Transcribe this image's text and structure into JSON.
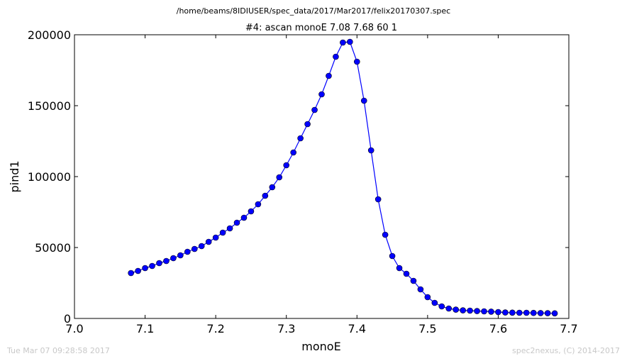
{
  "figure": {
    "suptitle": "/home/beams/8IDIUSER/spec_data/2017/Mar2017/felix20170307.spec",
    "footer_left": "Tue Mar 07 09:28:58 2017",
    "footer_right": "spec2nexus, (C) 2014-2017"
  },
  "chart_data": {
    "type": "line",
    "title": "#4: ascan  monoE 7.08 7.68  60 1",
    "xlabel": "monoE",
    "ylabel": "pind1",
    "xlim": [
      7.0,
      7.7
    ],
    "ylim": [
      0,
      200000
    ],
    "xticks": [
      "7.0",
      "7.1",
      "7.2",
      "7.3",
      "7.4",
      "7.5",
      "7.6",
      "7.7"
    ],
    "yticks": [
      "0",
      "50000",
      "100000",
      "150000",
      "200000"
    ],
    "grid": false,
    "color": "#0000ff",
    "marker": "circle",
    "series": [
      {
        "x": [
          7.08,
          7.09,
          7.1,
          7.11,
          7.12,
          7.13,
          7.14,
          7.15,
          7.16,
          7.17,
          7.18,
          7.19,
          7.2,
          7.21,
          7.22,
          7.23,
          7.24,
          7.25,
          7.26,
          7.27,
          7.28,
          7.29,
          7.3,
          7.31,
          7.32,
          7.33,
          7.34,
          7.35,
          7.36,
          7.37,
          7.38,
          7.39,
          7.4,
          7.41,
          7.42,
          7.43,
          7.44,
          7.45,
          7.46,
          7.47,
          7.48,
          7.49,
          7.5,
          7.51,
          7.52,
          7.53,
          7.54,
          7.55,
          7.56,
          7.57,
          7.58,
          7.59,
          7.6,
          7.61,
          7.62,
          7.63,
          7.64,
          7.65,
          7.66,
          7.67,
          7.68
        ],
        "values": [
          32000,
          33500,
          35500,
          37000,
          39000,
          40500,
          42500,
          44500,
          47000,
          49000,
          51000,
          54000,
          57000,
          60500,
          63500,
          67500,
          71000,
          75500,
          80500,
          86500,
          92500,
          99500,
          108000,
          117000,
          127000,
          137000,
          147000,
          158000,
          171000,
          184500,
          194500,
          195000,
          181000,
          153500,
          118500,
          84000,
          59000,
          44000,
          35500,
          31500,
          26500,
          20500,
          15000,
          11000,
          8500,
          7000,
          6200,
          5700,
          5500,
          5200,
          5000,
          4800,
          4500,
          4200,
          4100,
          4000,
          4000,
          3900,
          3800,
          3700,
          3600
        ]
      }
    ]
  }
}
